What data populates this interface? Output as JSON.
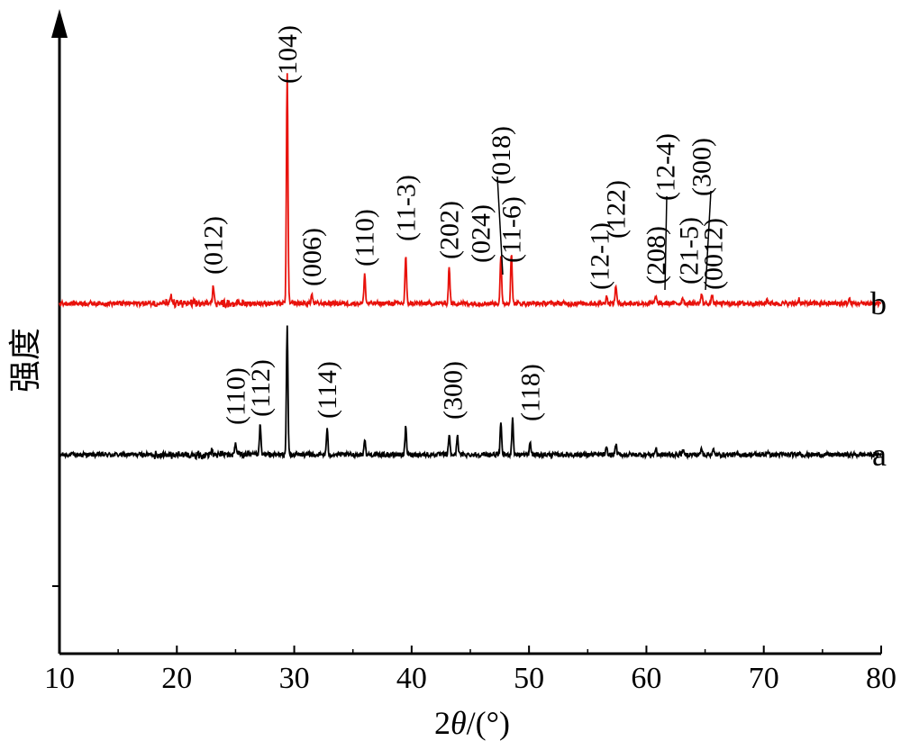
{
  "chart_data": {
    "type": "line",
    "xlabel_prefix": "2",
    "xlabel_symbol": "θ",
    "xlabel_suffix": "/(°)",
    "ylabel": "强度",
    "xlim": [
      10,
      80
    ],
    "x_ticks": [
      "10",
      "20",
      "30",
      "40",
      "50",
      "60",
      "70",
      "80"
    ],
    "grid": false,
    "series": [
      {
        "name": "a",
        "color": "#000000",
        "baseline": 0,
        "peaks": [
          {
            "x": 23.0,
            "y": 0.03
          },
          {
            "x": 25.0,
            "y": 0.09
          },
          {
            "x": 27.1,
            "y": 0.19
          },
          {
            "x": 29.4,
            "y": 0.82
          },
          {
            "x": 32.8,
            "y": 0.16
          },
          {
            "x": 36.0,
            "y": 0.1
          },
          {
            "x": 39.5,
            "y": 0.18
          },
          {
            "x": 43.2,
            "y": 0.13
          },
          {
            "x": 43.9,
            "y": 0.13
          },
          {
            "x": 47.6,
            "y": 0.2
          },
          {
            "x": 48.6,
            "y": 0.24
          },
          {
            "x": 50.1,
            "y": 0.08
          },
          {
            "x": 56.6,
            "y": 0.04
          },
          {
            "x": 57.4,
            "y": 0.07
          },
          {
            "x": 60.8,
            "y": 0.04
          },
          {
            "x": 63.1,
            "y": 0.03
          },
          {
            "x": 64.7,
            "y": 0.04
          },
          {
            "x": 65.7,
            "y": 0.03
          },
          {
            "x": 70.3,
            "y": 0.02
          },
          {
            "x": 73.0,
            "y": 0.02
          }
        ]
      },
      {
        "name": "b",
        "color": "#e8120c",
        "baseline": 1,
        "peaks": [
          {
            "x": 19.5,
            "y": 0.04
          },
          {
            "x": 23.1,
            "y": 0.13
          },
          {
            "x": 29.4,
            "y": 1.49
          },
          {
            "x": 31.5,
            "y": 0.06
          },
          {
            "x": 36.0,
            "y": 0.19
          },
          {
            "x": 39.5,
            "y": 0.31
          },
          {
            "x": 43.2,
            "y": 0.24
          },
          {
            "x": 47.6,
            "y": 0.3
          },
          {
            "x": 48.5,
            "y": 0.33
          },
          {
            "x": 56.6,
            "y": 0.05
          },
          {
            "x": 57.4,
            "y": 0.12
          },
          {
            "x": 60.8,
            "y": 0.05
          },
          {
            "x": 63.1,
            "y": 0.04
          },
          {
            "x": 64.7,
            "y": 0.06
          },
          {
            "x": 65.6,
            "y": 0.05
          },
          {
            "x": 70.3,
            "y": 0.03
          },
          {
            "x": 73.0,
            "y": 0.03
          },
          {
            "x": 77.3,
            "y": 0.03
          }
        ]
      }
    ],
    "annotations": [
      {
        "series": "a",
        "text": "(110)",
        "x": 25.0
      },
      {
        "series": "a",
        "text": "(112)",
        "x": 27.1
      },
      {
        "series": "a",
        "text": "(114)",
        "x": 32.8
      },
      {
        "series": "a",
        "text": "(300)",
        "x": 43.5
      },
      {
        "series": "a",
        "text": "(118)",
        "x": 50.1
      },
      {
        "series": "b",
        "text": "(012)",
        "x": 23.1
      },
      {
        "series": "b",
        "text": "(104)",
        "x": 29.4
      },
      {
        "series": "b",
        "text": "(006)",
        "x": 31.5
      },
      {
        "series": "b",
        "text": "(110)",
        "x": 36.0
      },
      {
        "series": "b",
        "text": "(11-3)",
        "x": 39.5
      },
      {
        "series": "b",
        "text": "(202)",
        "x": 43.2
      },
      {
        "series": "b",
        "text": "(024)",
        "x": 45.9
      },
      {
        "series": "b",
        "text": "(018)",
        "x": 47.6
      },
      {
        "series": "b",
        "text": "(11-6)",
        "x": 48.5
      },
      {
        "series": "b",
        "text": "(12-1)",
        "x": 56.0
      },
      {
        "series": "b",
        "text": "(122)",
        "x": 57.4
      },
      {
        "series": "b",
        "text": "(208)",
        "x": 60.8
      },
      {
        "series": "b",
        "text": "(12-4)",
        "x": 61.6
      },
      {
        "series": "b",
        "text": "(21-5)",
        "x": 63.6
      },
      {
        "series": "b",
        "text": "(300)",
        "x": 64.7
      },
      {
        "series": "b",
        "text": "(0012)",
        "x": 65.7
      }
    ]
  }
}
